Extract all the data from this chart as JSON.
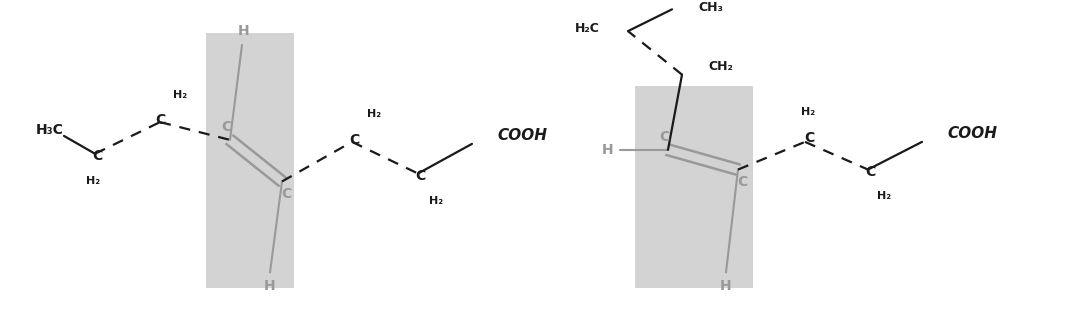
{
  "fig_width": 10.76,
  "fig_height": 3.1,
  "dpi": 100,
  "bg_color": "#ffffff",
  "gray_box_color": "#d3d3d3",
  "dark_color": "#1a1a1a",
  "gray_color": "#999999",
  "xlim": [
    0,
    10.76
  ],
  "ylim": [
    0,
    3.1
  ]
}
